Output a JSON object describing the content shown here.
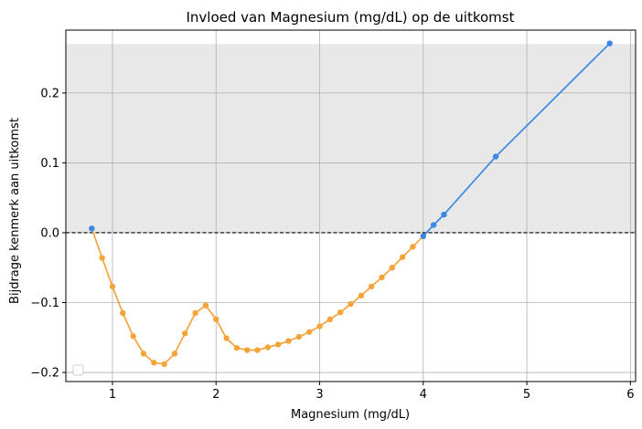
{
  "chart_data": {
    "type": "line",
    "title": "Invloed van Magnesium (mg/dL) op de uitkomst",
    "xlabel": "Magnesium (mg/dL)",
    "ylabel": "Bijdrage kenmerk aan uitkomst",
    "xlim": [
      0.55,
      6.05
    ],
    "ylim": [
      -0.213,
      0.29
    ],
    "x_ticks": [
      1,
      2,
      3,
      4,
      5,
      6
    ],
    "x_tick_labels": [
      "1",
      "2",
      "3",
      "4",
      "5",
      "6"
    ],
    "y_ticks": [
      -0.2,
      -0.1,
      0.0,
      0.1,
      0.2
    ],
    "y_tick_labels": [
      "−0.2",
      "−0.1",
      "0.0",
      "0.1",
      "0.2"
    ],
    "grid": true,
    "shaded_band": [
      0,
      0.27
    ],
    "zero_line": 0,
    "legend": "bottom-left (empty)",
    "colors": {
      "positive": "#3b87e4",
      "negative": "#f4a43b",
      "band": "#e8e8e8",
      "grid": "#b0b0b0"
    },
    "series": [
      {
        "color": "#f4a43b",
        "x": [
          0.8,
          0.9,
          1.0,
          1.1,
          1.2,
          1.3,
          1.4,
          1.5,
          1.6,
          1.7,
          1.8,
          1.9,
          2.0,
          2.1,
          2.2,
          2.3,
          2.4,
          2.5,
          2.6,
          2.7,
          2.8,
          2.9,
          3.0,
          3.1,
          3.2,
          3.3,
          3.4,
          3.5,
          3.6,
          3.7,
          3.8,
          3.9,
          4.0
        ],
        "y": [
          0.006,
          -0.036,
          -0.077,
          -0.115,
          -0.148,
          -0.173,
          -0.186,
          -0.188,
          -0.173,
          -0.144,
          -0.115,
          -0.104,
          -0.124,
          -0.151,
          -0.165,
          -0.168,
          -0.168,
          -0.164,
          -0.16,
          -0.155,
          -0.149,
          -0.142,
          -0.134,
          -0.124,
          -0.114,
          -0.102,
          -0.09,
          -0.077,
          -0.064,
          -0.05,
          -0.035,
          -0.02,
          -0.005
        ]
      },
      {
        "color": "#3b87e4",
        "x": [
          0.8
        ],
        "y": [
          0.006
        ]
      },
      {
        "color": "#3b87e4",
        "x": [
          4.0,
          4.1,
          4.2,
          4.7,
          5.8
        ],
        "y": [
          -0.005,
          0.011,
          0.026,
          0.109,
          0.271
        ]
      }
    ]
  }
}
